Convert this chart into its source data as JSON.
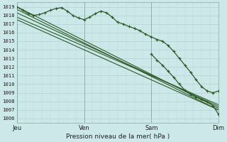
{
  "title": "Pression niveau de la mer( hPa )",
  "bg_color": "#cce8e8",
  "grid_color_major": "#aacccc",
  "grid_color_minor": "#bbdddd",
  "line_color": "#2d5a27",
  "ylim": [
    1005.5,
    1019.5
  ],
  "yticks": [
    1006,
    1007,
    1008,
    1009,
    1010,
    1011,
    1012,
    1013,
    1014,
    1015,
    1016,
    1017,
    1018,
    1019
  ],
  "xtick_labels": [
    "Jeu",
    "Ven",
    "Sam",
    "Dim"
  ],
  "xtick_positions": [
    0,
    96,
    192,
    288
  ],
  "xlim": [
    0,
    288
  ],
  "straight_lines": [
    {
      "x0": 0,
      "y0": 1019.0,
      "x1": 288,
      "y1": 1007.2
    },
    {
      "x0": 0,
      "y0": 1018.7,
      "x1": 288,
      "y1": 1007.0
    },
    {
      "x0": 0,
      "y0": 1018.3,
      "x1": 288,
      "y1": 1007.4
    },
    {
      "x0": 0,
      "y0": 1017.8,
      "x1": 288,
      "y1": 1007.6
    },
    {
      "x0": 0,
      "y0": 1017.5,
      "x1": 288,
      "y1": 1007.0
    }
  ],
  "observed_points": [
    [
      0,
      1019.0
    ],
    [
      8,
      1018.6
    ],
    [
      16,
      1018.2
    ],
    [
      24,
      1018.0
    ],
    [
      32,
      1018.1
    ],
    [
      40,
      1018.3
    ],
    [
      48,
      1018.6
    ],
    [
      56,
      1018.8
    ],
    [
      64,
      1018.9
    ],
    [
      72,
      1018.5
    ],
    [
      80,
      1018.0
    ],
    [
      88,
      1017.7
    ],
    [
      96,
      1017.5
    ],
    [
      104,
      1017.8
    ],
    [
      112,
      1018.2
    ],
    [
      120,
      1018.5
    ],
    [
      128,
      1018.3
    ],
    [
      136,
      1017.8
    ],
    [
      144,
      1017.2
    ],
    [
      152,
      1017.0
    ],
    [
      160,
      1016.7
    ],
    [
      168,
      1016.5
    ],
    [
      176,
      1016.2
    ],
    [
      184,
      1015.8
    ],
    [
      192,
      1015.5
    ],
    [
      200,
      1015.2
    ],
    [
      208,
      1015.0
    ],
    [
      216,
      1014.5
    ],
    [
      224,
      1013.8
    ],
    [
      232,
      1013.0
    ],
    [
      240,
      1012.2
    ],
    [
      248,
      1011.4
    ],
    [
      256,
      1010.5
    ],
    [
      264,
      1009.7
    ],
    [
      272,
      1009.2
    ],
    [
      280,
      1009.0
    ],
    [
      288,
      1009.2
    ]
  ],
  "observed_lower_points": [
    [
      192,
      1013.5
    ],
    [
      200,
      1012.8
    ],
    [
      208,
      1012.0
    ],
    [
      216,
      1011.2
    ],
    [
      224,
      1010.5
    ],
    [
      232,
      1009.8
    ],
    [
      240,
      1009.2
    ],
    [
      248,
      1009.0
    ],
    [
      256,
      1008.8
    ],
    [
      264,
      1009.0
    ],
    [
      272,
      1009.3
    ],
    [
      280,
      1009.0
    ],
    [
      288,
      1008.8
    ]
  ],
  "actual_measured_points": [
    [
      192,
      1013.5
    ],
    [
      200,
      1012.8
    ],
    [
      208,
      1012.2
    ],
    [
      216,
      1011.5
    ],
    [
      224,
      1010.8
    ],
    [
      232,
      1010.0
    ],
    [
      240,
      1009.3
    ],
    [
      248,
      1008.8
    ],
    [
      256,
      1008.5
    ],
    [
      264,
      1008.2
    ],
    [
      272,
      1008.0
    ],
    [
      280,
      1007.5
    ],
    [
      288,
      1006.5
    ]
  ]
}
